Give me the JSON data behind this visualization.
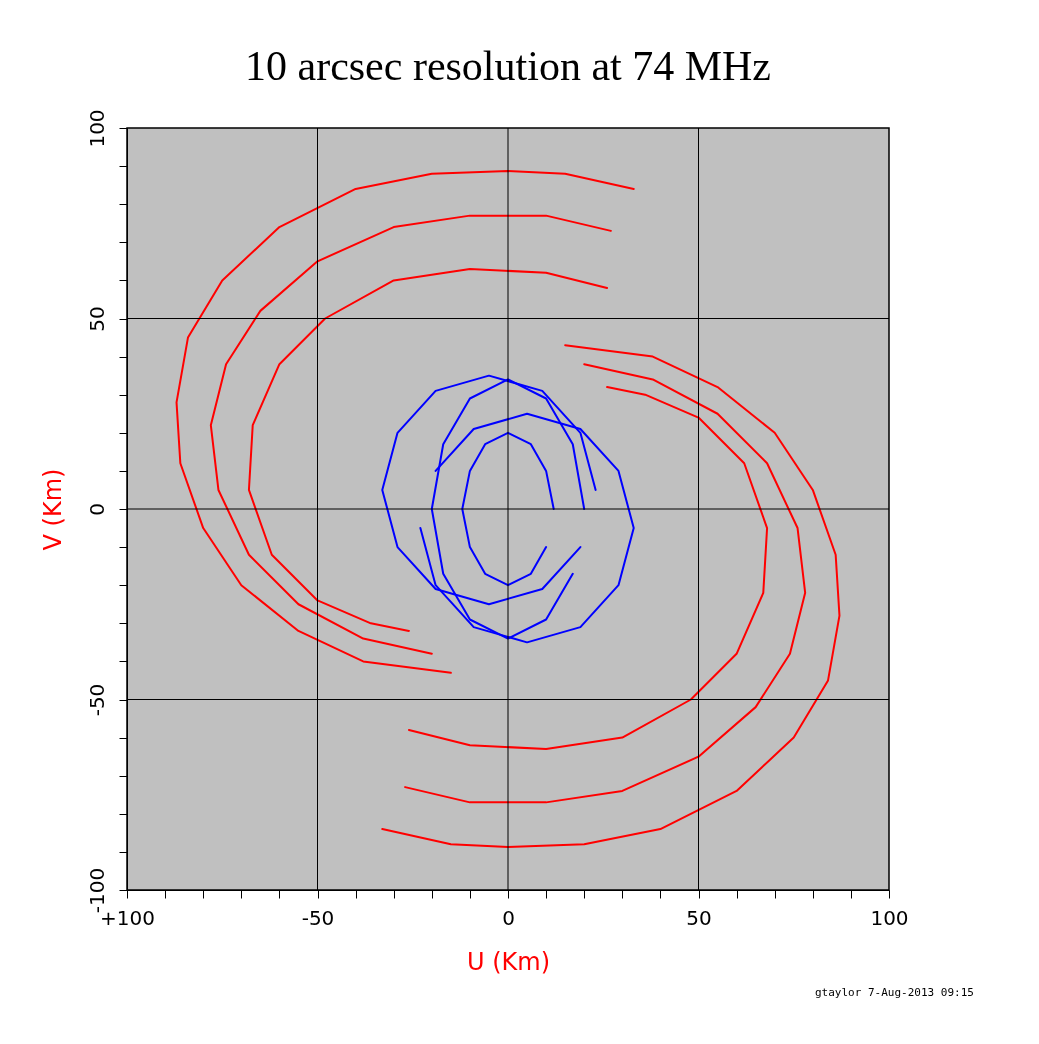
{
  "chart_data": {
    "type": "line",
    "title": "10 arcsec resolution at 74 MHz",
    "xlabel": "U (Km)",
    "ylabel": "V (Km)",
    "xlim": [
      -100,
      100
    ],
    "ylim": [
      -100,
      100
    ],
    "xticks": [
      {
        "value": -100,
        "label": "+100"
      },
      {
        "value": -90,
        "label": null
      },
      {
        "value": -80,
        "label": null
      },
      {
        "value": -70,
        "label": null
      },
      {
        "value": -60,
        "label": null
      },
      -50,
      {
        "value": -40,
        "label": null
      },
      {
        "value": -30,
        "label": null
      },
      {
        "value": -20,
        "label": null
      },
      {
        "value": -10,
        "label": null
      },
      0,
      {
        "value": 10,
        "label": null
      },
      {
        "value": 20,
        "label": null
      },
      {
        "value": 30,
        "label": null
      },
      {
        "value": 40,
        "label": null
      },
      50,
      {
        "value": 60,
        "label": null
      },
      {
        "value": 70,
        "label": null
      },
      {
        "value": 80,
        "label": null
      },
      {
        "value": 90,
        "label": null
      },
      100
    ],
    "yticks": [
      -100,
      {
        "value": -90,
        "label": null
      },
      {
        "value": -80,
        "label": null
      },
      {
        "value": -70,
        "label": null
      },
      {
        "value": -60,
        "label": null
      },
      -50,
      {
        "value": -40,
        "label": null
      },
      {
        "value": -30,
        "label": null
      },
      {
        "value": -20,
        "label": null
      },
      {
        "value": -10,
        "label": null
      },
      0,
      {
        "value": 10,
        "label": null
      },
      {
        "value": 20,
        "label": null
      },
      {
        "value": 30,
        "label": null
      },
      {
        "value": 40,
        "label": null
      },
      50,
      {
        "value": 60,
        "label": null
      },
      {
        "value": 70,
        "label": null
      },
      {
        "value": 80,
        "label": null
      },
      {
        "value": 90,
        "label": null
      },
      100
    ],
    "grid": true,
    "annotations": [
      "gtaylor  7-Aug-2013 09:15"
    ],
    "series": [
      {
        "color": "#ff0000",
        "x": [
          33,
          15,
          0,
          -20,
          -40,
          -60,
          -75,
          -84,
          -87,
          -86,
          -80,
          -70,
          -55,
          -38,
          -15
        ],
        "values": [
          84,
          88,
          88.7,
          88,
          84,
          74,
          60,
          45,
          28,
          12,
          -5,
          -20,
          -32,
          -40,
          -43
        ]
      },
      {
        "color": "#ff0000",
        "x": [
          27,
          10,
          -10,
          -30,
          -50,
          -65,
          -74,
          -78,
          -76,
          -68,
          -55,
          -38,
          -20
        ],
        "values": [
          73,
          77,
          77,
          74,
          65,
          52,
          38,
          22,
          5,
          -12,
          -25,
          -34,
          -38
        ]
      },
      {
        "color": "#ff0000",
        "x": [
          26,
          10,
          -10,
          -30,
          -48,
          -60,
          -67,
          -68,
          -62,
          -50,
          -36,
          -26
        ],
        "values": [
          58,
          62,
          63,
          60,
          50,
          38,
          22,
          5,
          -12,
          -24,
          -30,
          -32
        ]
      },
      {
        "color": "#ff0000",
        "x": [
          -33,
          -15,
          0,
          20,
          40,
          60,
          75,
          84,
          87,
          86,
          80,
          70,
          55,
          38,
          15
        ],
        "values": [
          -84,
          -88,
          -88.7,
          -88,
          -84,
          -74,
          -60,
          -45,
          -28,
          -12,
          5,
          20,
          32,
          40,
          43
        ]
      },
      {
        "color": "#ff0000",
        "x": [
          -27,
          -10,
          10,
          30,
          50,
          65,
          74,
          78,
          76,
          68,
          55,
          38,
          20
        ],
        "values": [
          -73,
          -77,
          -77,
          -74,
          -65,
          -52,
          -38,
          -22,
          -5,
          12,
          25,
          34,
          38
        ]
      },
      {
        "color": "#ff0000",
        "x": [
          -26,
          -10,
          10,
          30,
          48,
          60,
          67,
          68,
          62,
          50,
          36,
          26
        ],
        "values": [
          -58,
          -62,
          -63,
          -60,
          -50,
          -38,
          -22,
          -5,
          12,
          24,
          30,
          32
        ]
      },
      {
        "color": "#0000ff",
        "x": [
          23,
          19,
          9,
          -5,
          -19,
          -29,
          -33,
          -29,
          -19,
          -5,
          9,
          19
        ],
        "values": [
          5,
          20,
          31,
          35,
          31,
          20,
          5,
          -10,
          -21,
          -25,
          -21,
          -10
        ]
      },
      {
        "color": "#0000ff",
        "x": [
          -23,
          -19,
          -9,
          5,
          19,
          29,
          33,
          29,
          19,
          5,
          -9,
          -19
        ],
        "values": [
          -5,
          -20,
          -31,
          -35,
          -31,
          -20,
          -5,
          10,
          21,
          25,
          21,
          10
        ]
      },
      {
        "color": "#0000ff",
        "x": [
          20,
          17,
          10,
          0,
          -10,
          -17,
          -20,
          -17,
          -10,
          0,
          10,
          17
        ],
        "values": [
          0,
          17,
          29,
          34,
          29,
          17,
          0,
          -17,
          -29,
          -34,
          -29,
          -17
        ]
      },
      {
        "color": "#0000ff",
        "x": [
          12,
          10,
          6,
          0,
          -6,
          -10,
          -12,
          -10,
          -6,
          0,
          6,
          10
        ],
        "values": [
          0,
          10,
          17,
          20,
          17,
          10,
          0,
          -10,
          -17,
          -20,
          -17,
          -10
        ]
      }
    ]
  }
}
